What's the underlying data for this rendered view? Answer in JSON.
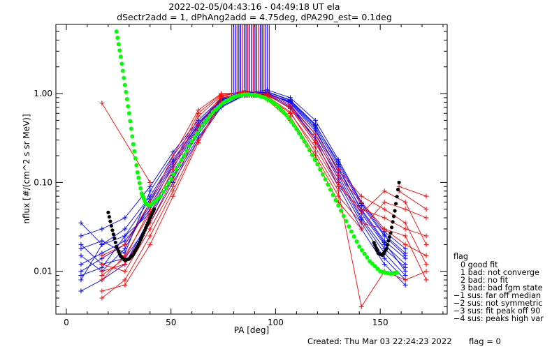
{
  "figure": {
    "title_line1": "2022-02-05/04:43:16 - 04:49:18 UT ela",
    "title_line2": "dSectr2add = 1, dPhAng2add = 4.75deg, dPA290_est=   0.1deg",
    "footer_created": "Created: Thu Mar 03 22:24:23 2022",
    "footer_flag": "flag = 0"
  },
  "legend": {
    "title": "flag",
    "items": [
      "0 good fit",
      "1 bad: not converge",
      "2 bad: no fit",
      "3 bad: bad fgm state",
      "−1 sus: far off median",
      "−2 sus: not symmetric",
      "−3 sus: fit peak off 90",
      "−4 sus: peaks high var"
    ]
  },
  "colors": {
    "red": "#ff0000",
    "blue": "#0000ff",
    "green": "#00ff00",
    "black": "#000000"
  },
  "chart_data": {
    "type": "line",
    "xlabel": "PA [deg]",
    "ylabel": "nflux [#/(cm^2 s sr MeV)]",
    "xlim": [
      -5,
      182
    ],
    "ylim": [
      0.0033,
      6.0
    ],
    "yscale": "log",
    "x_ticks": [
      0,
      50,
      100,
      150
    ],
    "x_tick_labels": [
      "0",
      "50",
      "100",
      "150"
    ],
    "y_ticks": [
      0.01,
      0.1,
      1.0
    ],
    "y_tick_labels": [
      "0.01",
      "0.10",
      "1.00"
    ],
    "x_positions": [
      7,
      17,
      28,
      40,
      51,
      63,
      74,
      85,
      96,
      107,
      119,
      130,
      141,
      152,
      162,
      172
    ],
    "series": [
      {
        "color": "blue",
        "values": [
          0.012,
          0.016,
          0.022,
          0.05,
          0.13,
          0.38,
          0.8,
          0.99,
          1.0,
          0.8,
          0.4,
          0.13,
          0.045,
          0.02,
          0.012,
          null
        ]
      },
      {
        "color": "blue",
        "values": [
          0.02,
          0.012,
          0.014,
          0.035,
          0.1,
          0.3,
          0.7,
          0.95,
          1.05,
          0.85,
          0.45,
          0.16,
          0.055,
          0.025,
          0.015,
          null
        ]
      },
      {
        "color": "blue",
        "values": [
          0.008,
          0.02,
          0.03,
          0.07,
          0.18,
          0.45,
          0.85,
          1.02,
          0.95,
          0.7,
          0.32,
          0.11,
          0.038,
          0.016,
          0.009,
          null
        ]
      },
      {
        "color": "blue",
        "values": [
          0.015,
          0.01,
          0.018,
          0.06,
          0.16,
          0.42,
          0.82,
          1.0,
          0.98,
          0.72,
          0.35,
          0.12,
          0.04,
          0.018,
          0.011,
          null
        ]
      },
      {
        "color": "blue",
        "values": [
          0.025,
          0.03,
          0.04,
          0.09,
          0.22,
          0.5,
          0.88,
          1.05,
          1.02,
          0.78,
          0.38,
          0.14,
          0.05,
          0.022,
          0.014,
          null
        ]
      },
      {
        "color": "blue",
        "values": [
          0.006,
          0.008,
          0.012,
          0.04,
          0.12,
          0.35,
          0.75,
          0.98,
          1.0,
          0.75,
          0.3,
          0.09,
          0.03,
          0.012,
          0.007,
          null
        ]
      },
      {
        "color": "blue",
        "values": [
          0.01,
          0.014,
          0.02,
          0.055,
          0.15,
          0.4,
          0.8,
          1.0,
          1.1,
          0.9,
          0.5,
          0.18,
          0.06,
          0.028,
          0.018,
          null
        ]
      },
      {
        "color": "blue",
        "values": [
          0.035,
          0.02,
          0.025,
          0.045,
          0.11,
          0.32,
          0.72,
          0.96,
          0.99,
          0.82,
          0.42,
          0.15,
          0.048,
          0.021,
          0.01,
          null
        ]
      },
      {
        "color": "blue",
        "values": [
          0.018,
          0.022,
          0.016,
          0.08,
          0.2,
          0.47,
          0.86,
          1.03,
          0.97,
          0.68,
          0.28,
          0.1,
          0.035,
          0.014,
          0.008,
          null
        ]
      },
      {
        "color": "blue",
        "values": [
          0.009,
          0.011,
          0.025,
          0.065,
          0.17,
          0.44,
          0.84,
          1.01,
          1.04,
          0.84,
          0.44,
          0.17,
          0.058,
          0.026,
          0.016,
          null
        ]
      },
      {
        "color": "red",
        "values": [
          null,
          0.012,
          0.01,
          0.03,
          0.09,
          0.4,
          0.9,
          1.0,
          0.95,
          0.7,
          0.3,
          0.12,
          0.06,
          0.03,
          0.02,
          0.015
        ]
      },
      {
        "color": "red",
        "values": [
          null,
          0.008,
          0.015,
          0.045,
          0.14,
          0.55,
          0.95,
          1.05,
          0.9,
          0.6,
          0.25,
          0.09,
          0.05,
          0.04,
          0.03,
          0.025
        ]
      },
      {
        "color": "red",
        "values": [
          null,
          0.015,
          0.02,
          0.06,
          0.2,
          0.65,
          1.0,
          1.02,
          0.85,
          0.5,
          0.18,
          0.06,
          0.03,
          0.06,
          0.05,
          0.04
        ]
      },
      {
        "color": "red",
        "values": [
          null,
          0.005,
          0.008,
          0.025,
          0.08,
          0.3,
          0.8,
          0.98,
          1.0,
          0.75,
          0.35,
          0.14,
          0.07,
          0.05,
          0.035,
          0.012
        ]
      },
      {
        "color": "red",
        "values": [
          null,
          0.01,
          0.012,
          0.035,
          0.11,
          0.45,
          0.92,
          1.08,
          0.98,
          0.68,
          0.28,
          0.1,
          0.045,
          0.08,
          0.06,
          0.02
        ]
      },
      {
        "color": "red",
        "values": [
          null,
          0.006,
          0.007,
          0.02,
          0.07,
          0.28,
          0.78,
          0.96,
          0.93,
          0.62,
          0.22,
          0.08,
          0.004,
          0.01,
          0.008,
          0.01
        ]
      },
      {
        "color": "red",
        "values": [
          null,
          0.009,
          0.014,
          0.05,
          0.16,
          0.6,
          0.98,
          1.04,
          0.88,
          0.55,
          0.2,
          0.07,
          0.035,
          0.03,
          0.025,
          0.008
        ]
      }
    ],
    "outliers": [
      {
        "color": "red",
        "x": [
          17,
          40
        ],
        "y": [
          0.78,
          0.1
        ]
      },
      {
        "color": "red",
        "x": [
          159,
          172
        ],
        "y": [
          0.09,
          0.07
        ]
      },
      {
        "color": "red",
        "x": [
          159,
          172
        ],
        "y": [
          0.08,
          0.05
        ]
      }
    ],
    "spike": {
      "x_range": [
        79,
        97
      ],
      "note": "vertical spikes off scale near 90 deg"
    },
    "fit_green": {
      "x": [
        24,
        26,
        28,
        30,
        32,
        34,
        36,
        38,
        40,
        45,
        50,
        55,
        60,
        65,
        70,
        75,
        80,
        85,
        90,
        95,
        100,
        105,
        110,
        115,
        120,
        125,
        130,
        135,
        140,
        145,
        150,
        155,
        158
      ],
      "y": [
        5.0,
        2.6,
        1.25,
        0.6,
        0.27,
        0.13,
        0.075,
        0.058,
        0.055,
        0.07,
        0.11,
        0.18,
        0.29,
        0.44,
        0.62,
        0.79,
        0.92,
        0.98,
        0.97,
        0.9,
        0.76,
        0.58,
        0.4,
        0.26,
        0.16,
        0.095,
        0.055,
        0.032,
        0.019,
        0.013,
        0.01,
        0.0094,
        0.0097
      ]
    },
    "fit_black_left": {
      "x": [
        20,
        22,
        24,
        26,
        28,
        30,
        32,
        34,
        36,
        38,
        40,
        42
      ],
      "y": [
        0.046,
        0.029,
        0.019,
        0.0148,
        0.0133,
        0.0138,
        0.0155,
        0.019,
        0.024,
        0.031,
        0.04,
        0.05
      ]
    },
    "fit_black_right": {
      "x": [
        147,
        149,
        151,
        153,
        155,
        157,
        159
      ],
      "y": [
        0.021,
        0.016,
        0.0152,
        0.018,
        0.027,
        0.048,
        0.1
      ]
    }
  }
}
